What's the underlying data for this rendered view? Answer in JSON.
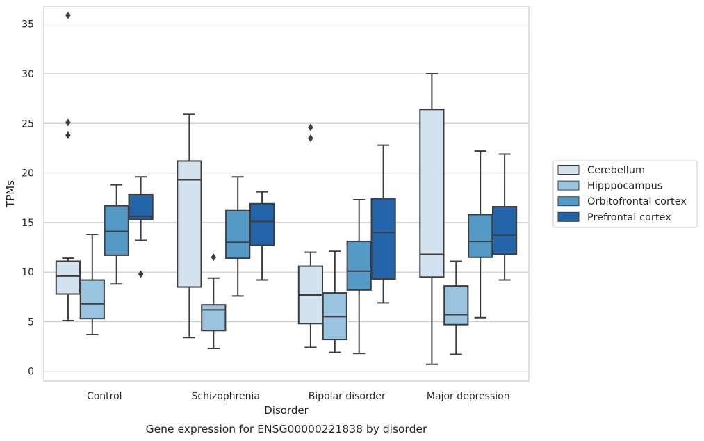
{
  "chart_data": {
    "type": "box",
    "xlabel": "Disorder",
    "ylabel": "TPMs",
    "caption": "Gene expression for ENSG00000221838 by disorder",
    "ylim": [
      -1,
      36.8
    ],
    "yticks": [
      0,
      5,
      10,
      15,
      20,
      25,
      30,
      35
    ],
    "grid": "horizontal",
    "legend_position": "right",
    "categories": [
      "Control",
      "Schizophrenia",
      "Bipolar disorder",
      "Major depression"
    ],
    "series": [
      {
        "name": "Cerebellum",
        "color": "#d4e2f0",
        "boxes": [
          {
            "whislo": 5.1,
            "q1": 7.8,
            "med": 9.6,
            "q3": 11.1,
            "whishi": 11.4,
            "fliers": [
              23.8,
              25.1,
              35.9
            ]
          },
          {
            "whislo": 3.4,
            "q1": 8.5,
            "med": 19.3,
            "q3": 21.2,
            "whishi": 25.9,
            "fliers": []
          },
          {
            "whislo": 2.4,
            "q1": 4.8,
            "med": 7.7,
            "q3": 10.6,
            "whishi": 12.0,
            "fliers": [
              23.5,
              24.6
            ]
          },
          {
            "whislo": 0.7,
            "q1": 9.5,
            "med": 11.8,
            "q3": 26.4,
            "whishi": 30.0,
            "fliers": []
          }
        ]
      },
      {
        "name": "Hipppocampus",
        "color": "#9ac3df",
        "boxes": [
          {
            "whislo": 3.7,
            "q1": 5.3,
            "med": 6.8,
            "q3": 9.2,
            "whishi": 13.8,
            "fliers": []
          },
          {
            "whislo": 2.3,
            "q1": 4.1,
            "med": 6.2,
            "q3": 6.7,
            "whishi": 9.4,
            "fliers": [
              11.5
            ]
          },
          {
            "whislo": 1.9,
            "q1": 3.2,
            "med": 5.5,
            "q3": 7.9,
            "whishi": 12.1,
            "fliers": []
          },
          {
            "whislo": 1.7,
            "q1": 4.7,
            "med": 5.7,
            "q3": 8.6,
            "whishi": 11.1,
            "fliers": []
          }
        ]
      },
      {
        "name": "Orbitofrontal cortex",
        "color": "#5599c7",
        "boxes": [
          {
            "whislo": 8.8,
            "q1": 11.7,
            "med": 14.1,
            "q3": 16.7,
            "whishi": 18.8,
            "fliers": []
          },
          {
            "whislo": 7.6,
            "q1": 11.4,
            "med": 13.0,
            "q3": 16.2,
            "whishi": 19.6,
            "fliers": []
          },
          {
            "whislo": 1.8,
            "q1": 8.2,
            "med": 10.1,
            "q3": 13.1,
            "whishi": 17.3,
            "fliers": []
          },
          {
            "whislo": 5.4,
            "q1": 11.5,
            "med": 13.1,
            "q3": 15.8,
            "whishi": 22.2,
            "fliers": []
          }
        ]
      },
      {
        "name": "Prefrontal cortex",
        "color": "#2464a8",
        "boxes": [
          {
            "whislo": 13.2,
            "q1": 15.3,
            "med": 15.6,
            "q3": 17.8,
            "whishi": 19.6,
            "fliers": [
              9.8
            ]
          },
          {
            "whislo": 9.2,
            "q1": 12.7,
            "med": 15.1,
            "q3": 16.9,
            "whishi": 18.1,
            "fliers": []
          },
          {
            "whislo": 6.9,
            "q1": 9.3,
            "med": 14.0,
            "q3": 17.4,
            "whishi": 22.8,
            "fliers": []
          },
          {
            "whislo": 9.2,
            "q1": 11.8,
            "med": 13.7,
            "q3": 16.6,
            "whishi": 21.9,
            "fliers": []
          }
        ]
      }
    ]
  }
}
